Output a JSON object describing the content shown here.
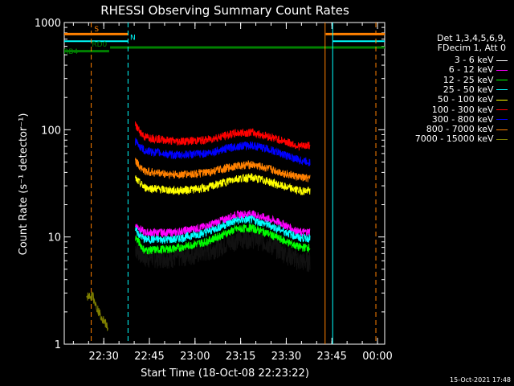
{
  "chart_data": {
    "type": "line",
    "title": "RHESSI Observing Summary Count Rates",
    "xlabel": "Start Time (18-Oct-08 22:23:22)",
    "ylabel": "Count Rate (s⁻¹ detector⁻¹)",
    "y_scale": "log",
    "ylim": [
      1,
      1000
    ],
    "xlim_minutes": [
      -6.37,
      99.0
    ],
    "x_ticks": [
      {
        "minutes": 6.63,
        "label": "22:30"
      },
      {
        "minutes": 21.63,
        "label": "22:45"
      },
      {
        "minutes": 36.63,
        "label": "23:00"
      },
      {
        "minutes": 51.63,
        "label": "23:15"
      },
      {
        "minutes": 66.63,
        "label": "23:30"
      },
      {
        "minutes": 81.63,
        "label": "23:45"
      },
      {
        "minutes": 96.63,
        "label": "00:00"
      }
    ],
    "y_ticks": [
      {
        "value": 1,
        "label": "1"
      },
      {
        "value": 10,
        "label": "10"
      },
      {
        "value": 100,
        "label": "100"
      },
      {
        "value": 1000,
        "label": "1000"
      }
    ],
    "legend_header": [
      "Det 1,3,4,5,6,9,",
      "FDecim 1, Att 0"
    ],
    "legend_position": "right",
    "series": [
      {
        "name": "3 - 6 keV",
        "color": "#000000",
        "points": [
          [
            17,
            8
          ],
          [
            20,
            6.5
          ],
          [
            30,
            6.5
          ],
          [
            40,
            7.3
          ],
          [
            50,
            9.5
          ],
          [
            55,
            10
          ],
          [
            60,
            9
          ],
          [
            65,
            7.5
          ],
          [
            71,
            6
          ],
          [
            74.5,
            6
          ]
        ]
      },
      {
        "name": "6 - 12 keV",
        "color": "#ff00ff",
        "points": [
          [
            17,
            13
          ],
          [
            20,
            11
          ],
          [
            30,
            11
          ],
          [
            40,
            12.5
          ],
          [
            50,
            16
          ],
          [
            55,
            16.5
          ],
          [
            60,
            15
          ],
          [
            65,
            13.5
          ],
          [
            71,
            11
          ],
          [
            74.5,
            11.2
          ]
        ]
      },
      {
        "name": "12 - 25 keV",
        "color": "#00ff00",
        "points": [
          [
            17,
            10
          ],
          [
            20,
            7.5
          ],
          [
            30,
            7.8
          ],
          [
            40,
            9
          ],
          [
            50,
            11.8
          ],
          [
            55,
            12.2
          ],
          [
            60,
            11
          ],
          [
            65,
            9.5
          ],
          [
            71,
            8
          ],
          [
            74.5,
            8
          ]
        ]
      },
      {
        "name": "25 - 50 keV",
        "color": "#00ffff",
        "points": [
          [
            17,
            11.5
          ],
          [
            20,
            9.5
          ],
          [
            30,
            9.5
          ],
          [
            40,
            11
          ],
          [
            50,
            14.2
          ],
          [
            55,
            14.6
          ],
          [
            60,
            13.2
          ],
          [
            65,
            11.6
          ],
          [
            71,
            9.8
          ],
          [
            74.5,
            9.8
          ]
        ]
      },
      {
        "name": "50 - 100 keV",
        "color": "#ffff00",
        "points": [
          [
            17,
            35
          ],
          [
            20,
            29
          ],
          [
            30,
            27
          ],
          [
            40,
            28.5
          ],
          [
            50,
            35
          ],
          [
            55,
            36
          ],
          [
            60,
            33.5
          ],
          [
            65,
            30
          ],
          [
            71,
            27
          ],
          [
            74.5,
            27
          ]
        ]
      },
      {
        "name": "100 - 300 keV",
        "color": "#ff0000",
        "points": [
          [
            17,
            110
          ],
          [
            20,
            86
          ],
          [
            30,
            78
          ],
          [
            40,
            80
          ],
          [
            50,
            93
          ],
          [
            55,
            95
          ],
          [
            60,
            88
          ],
          [
            65,
            80
          ],
          [
            71,
            70
          ],
          [
            74.5,
            72
          ]
        ]
      },
      {
        "name": "300 - 800 keV",
        "color": "#0000ff",
        "points": [
          [
            17,
            78
          ],
          [
            20,
            64
          ],
          [
            30,
            58
          ],
          [
            40,
            60
          ],
          [
            50,
            70
          ],
          [
            55,
            72
          ],
          [
            60,
            67
          ],
          [
            65,
            60
          ],
          [
            71,
            52
          ],
          [
            74.5,
            50
          ]
        ]
      },
      {
        "name": "800 - 7000 keV",
        "color": "#ff8000",
        "points": [
          [
            17,
            51
          ],
          [
            20,
            41
          ],
          [
            30,
            38
          ],
          [
            40,
            39.5
          ],
          [
            50,
            46
          ],
          [
            55,
            47.5
          ],
          [
            60,
            44
          ],
          [
            65,
            40
          ],
          [
            71,
            36
          ],
          [
            74.5,
            35
          ]
        ]
      },
      {
        "name": "7000 - 15000 keV",
        "color": "#808000",
        "points": [
          [
            1,
            2.8
          ],
          [
            3,
            2.8
          ],
          [
            5,
            2
          ],
          [
            7,
            1.6
          ],
          [
            8,
            1.4
          ]
        ]
      }
    ],
    "annotations": [
      {
        "label": "S",
        "color": "#ff8000"
      },
      {
        "label": "N",
        "color": "#00ffff"
      },
      {
        "label": "RD0",
        "color": "#008000"
      },
      {
        "label": "RB4",
        "color": "#008000"
      }
    ]
  },
  "timestamp": "15-Oct-2021 17:48"
}
